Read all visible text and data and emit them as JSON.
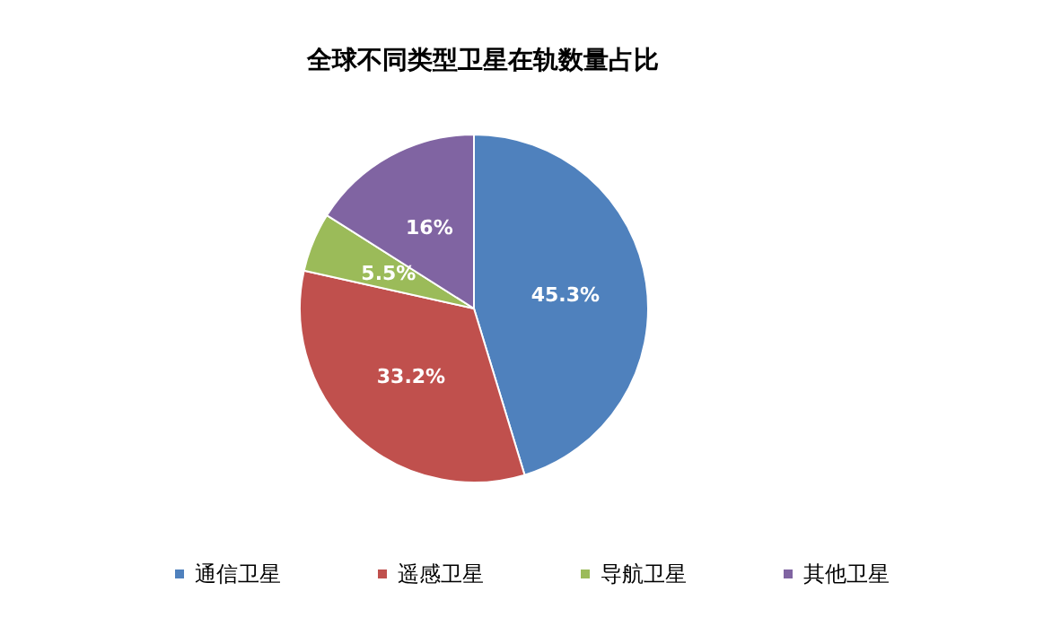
{
  "chart_data": {
    "type": "pie",
    "title": "全球不同类型卫星在轨数量占比",
    "categories": [
      "通信卫星",
      "遥感卫星",
      "导航卫星",
      "其他卫星"
    ],
    "values": [
      45.3,
      33.2,
      5.5,
      16
    ],
    "value_labels": [
      "45.3%",
      "33.2%",
      "5.5%",
      "16%"
    ],
    "colors": [
      "#4f81bd",
      "#c0504d",
      "#9bbb59",
      "#8064a2"
    ],
    "legend": "bottom"
  }
}
